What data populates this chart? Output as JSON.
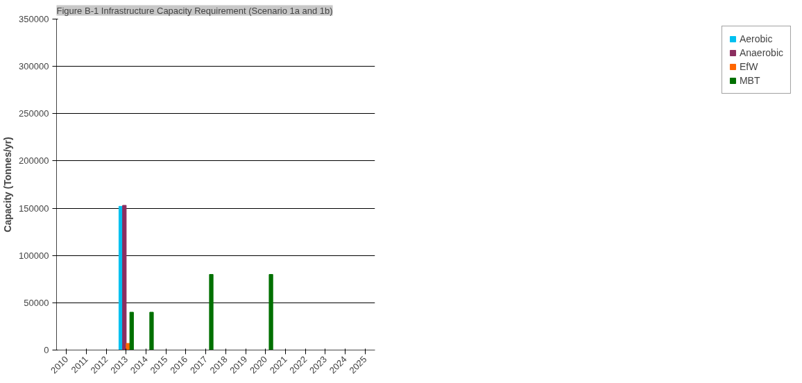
{
  "chart_data": {
    "type": "bar",
    "title": "Figure B-1 Infrastructure Capacity Requirement (Scenario 1a and 1b)",
    "ylabel": "Capacity (Tonnes/yr)",
    "categories": [
      "2010",
      "2011",
      "2012",
      "2013",
      "2014",
      "2015",
      "2016",
      "2017",
      "2018",
      "2019",
      "2020",
      "2021",
      "2022",
      "2023",
      "2024",
      "2025"
    ],
    "series": [
      {
        "name": "Aerobic",
        "color": "#00c0f0",
        "values": [
          null,
          null,
          null,
          152000,
          null,
          null,
          null,
          null,
          null,
          null,
          null,
          null,
          null,
          null,
          null,
          null
        ]
      },
      {
        "name": "Anaerobic",
        "color": "#8b2e60",
        "values": [
          null,
          null,
          null,
          153000,
          null,
          null,
          null,
          null,
          null,
          null,
          null,
          null,
          null,
          null,
          null,
          null
        ]
      },
      {
        "name": "EfW",
        "color": "#ff6600",
        "values": [
          null,
          null,
          null,
          7000,
          null,
          null,
          null,
          null,
          null,
          null,
          null,
          null,
          null,
          null,
          null,
          null
        ]
      },
      {
        "name": "MBT",
        "color": "#007000",
        "values": [
          null,
          null,
          null,
          40000,
          40000,
          null,
          null,
          80000,
          null,
          null,
          80000,
          null,
          null,
          null,
          null,
          null
        ]
      }
    ],
    "ylim": [
      0,
      350000
    ],
    "yticks": [
      0,
      50000,
      100000,
      150000,
      200000,
      250000,
      300000,
      350000
    ],
    "grid": "y",
    "legend": "right"
  }
}
